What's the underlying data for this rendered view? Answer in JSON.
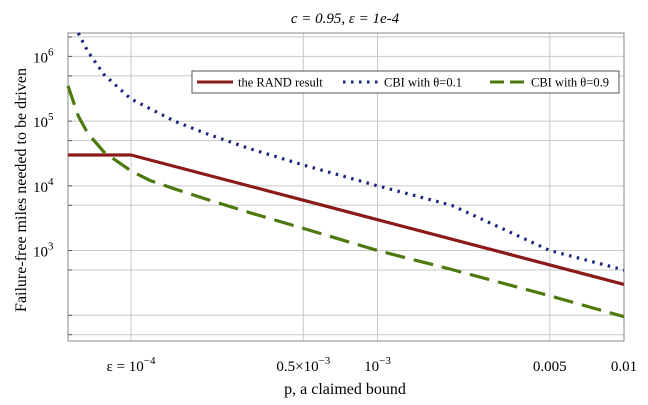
{
  "chart_data": {
    "type": "line",
    "title": "c = 0.95, ε = 1e-4",
    "xlabel": "p, a claimed bound",
    "ylabel": "Failure-free miles needed to be driven",
    "x_scale": "log",
    "y_scale": "log",
    "xlim": [
      5.55e-05,
      0.01
    ],
    "ylim": [
      40,
      2300000
    ],
    "x_ticks": [
      {
        "value": 0.0001,
        "prefix": "ε = ",
        "base": "10",
        "exp": "−4"
      },
      {
        "value": 0.0005,
        "prefix": "0.5×",
        "base": "10",
        "exp": "−3"
      },
      {
        "value": 0.001,
        "prefix": "",
        "base": "10",
        "exp": "−3"
      },
      {
        "value": 0.005,
        "prefix": "",
        "base": "0.005",
        "exp": ""
      },
      {
        "value": 0.01,
        "prefix": "",
        "base": "0.01",
        "exp": ""
      }
    ],
    "y_ticks": [
      {
        "value": 1000,
        "base": "10",
        "exp": "3"
      },
      {
        "value": 10000,
        "base": "10",
        "exp": "4"
      },
      {
        "value": 100000,
        "base": "10",
        "exp": "5"
      },
      {
        "value": 1000000,
        "base": "10",
        "exp": "6"
      }
    ],
    "legend": {
      "position": "top-right",
      "entries": [
        "the RAND result",
        "CBI with θ=0.1",
        "CBI with θ=0.9"
      ]
    },
    "series": [
      {
        "name": "the RAND result",
        "color": "#8b1a1a",
        "style": "solid",
        "x": [
          5.55e-05,
          0.0001,
          0.0005,
          0.001,
          0.005,
          0.01
        ],
        "y": [
          29950,
          29950,
          5990,
          2995,
          599,
          300
        ]
      },
      {
        "name": "CBI with θ=0.1",
        "color": "#1a237e",
        "style": "dotted",
        "x": [
          6.11e-05,
          6.67e-05,
          7.78e-05,
          0.0001,
          0.00015,
          0.0002,
          0.0003,
          0.0005,
          0.001,
          0.002,
          0.005,
          0.01
        ],
        "y": [
          2300000,
          1200000,
          520000,
          220000,
          100000,
          65000,
          38000,
          21000,
          10000,
          5000,
          1000,
          500
        ]
      },
      {
        "name": "CBI with θ=0.9",
        "color": "#4d7a0f",
        "style": "dashed",
        "x": [
          5.55e-05,
          6.11e-05,
          6.67e-05,
          7.78e-05,
          0.0001,
          0.00012,
          0.00015,
          0.0002,
          0.0003,
          0.0005,
          0.001,
          0.002,
          0.005,
          0.01
        ],
        "y": [
          350000,
          120000,
          65000,
          33000,
          17000,
          12000,
          9000,
          6300,
          3900,
          2200,
          1000,
          510,
          200,
          95
        ]
      }
    ]
  }
}
